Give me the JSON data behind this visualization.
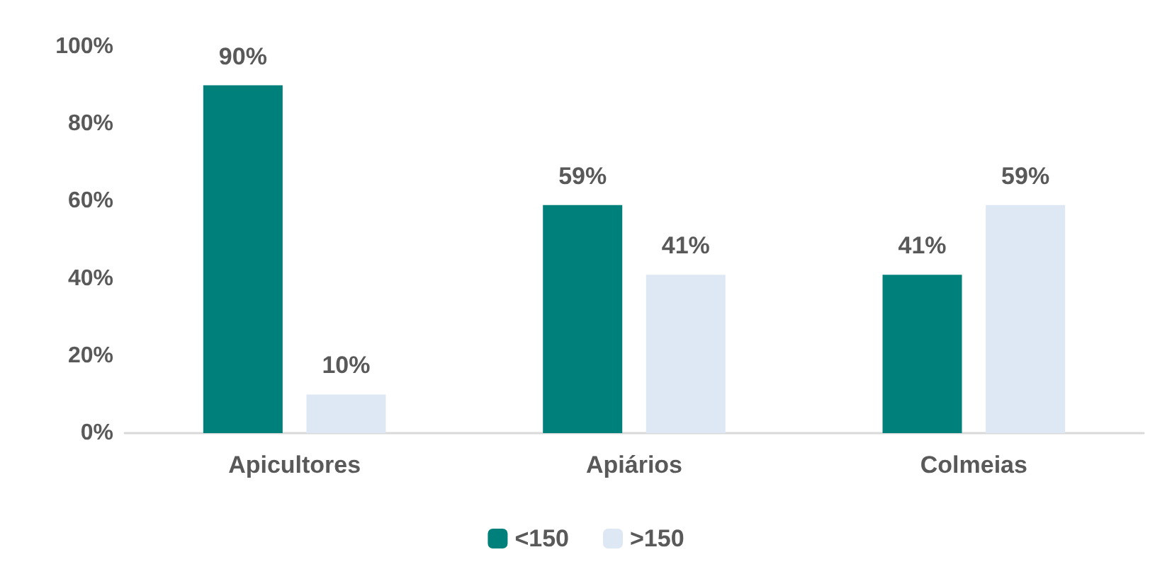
{
  "chart_data": {
    "type": "bar",
    "categories": [
      "Apicultores",
      "Apiários",
      "Colmeias"
    ],
    "series": [
      {
        "name": "<150",
        "color": "#00807a",
        "values": [
          90,
          59,
          41
        ],
        "value_labels": [
          "90%",
          "59%",
          "41%"
        ]
      },
      {
        "name": ">150",
        "color": "#dde8f4",
        "values": [
          10,
          41,
          59
        ],
        "value_labels": [
          "10%",
          "41%",
          "59%"
        ]
      }
    ],
    "ylim": [
      0,
      100
    ],
    "yticks": [
      {
        "value": 0,
        "label": "0%"
      },
      {
        "value": 20,
        "label": "20%"
      },
      {
        "value": 40,
        "label": "40%"
      },
      {
        "value": 60,
        "label": "60%"
      },
      {
        "value": 80,
        "label": "80%"
      },
      {
        "value": 100,
        "label": "100%"
      }
    ],
    "grid": false,
    "legend": "bottom"
  }
}
